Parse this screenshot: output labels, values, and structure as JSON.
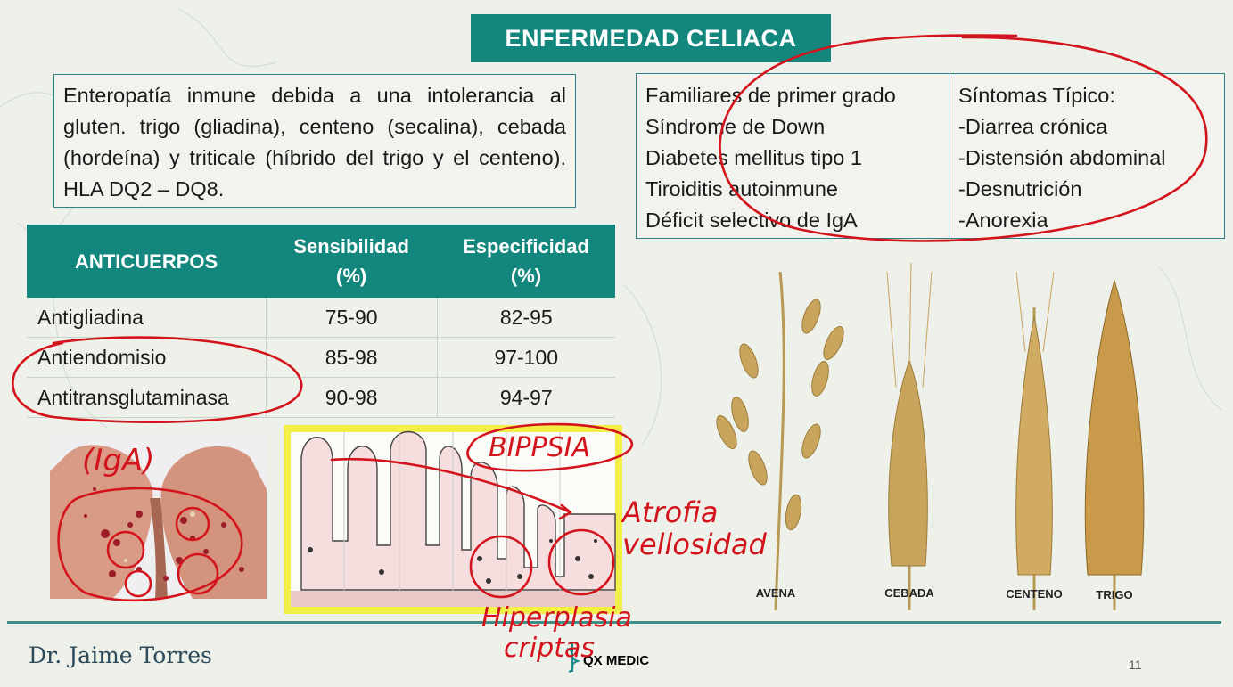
{
  "slide": {
    "title": "ENFERMEDAD CELIACA",
    "definition": "Enteropatía inmune debida a una intolerancia al gluten. trigo (gliadina), centeno (secalina), cebada (hordeína) y triticale (híbrido del trigo y el centeno). HLA DQ2 – DQ8.",
    "risk_groups": [
      "Familiares de primer grado",
      "Síndrome de Down",
      "Diabetes mellitus tipo 1",
      "Tiroiditis autoinmune",
      "Déficit selectivo de IgA"
    ],
    "symptoms": [
      "Síntomas Típico:",
      "-Diarrea crónica",
      "-Distensión abdominal",
      "-Desnutrición",
      "-Anorexia"
    ],
    "antibody_table": {
      "headers": [
        "ANTICUERPOS",
        "Sensibilidad (%)",
        "Especificidad (%)"
      ],
      "rows": [
        [
          "Antigliadina",
          "75-90",
          "82-95"
        ],
        [
          "Antiendomisio",
          "85-98",
          "97-100"
        ],
        [
          "Antitransglutaminasa",
          "90-98",
          "94-97"
        ]
      ]
    },
    "grains": [
      "AVENA",
      "CEBADA",
      "CENTENO",
      "TRIGO"
    ],
    "author": "Dr. Jaime Torres",
    "page_number": "11",
    "logo_text": "QX MEDIC"
  },
  "annotations": {
    "iga": "(IgA)",
    "biopsia": "BIPPSIA",
    "atrofia": "Atrofia",
    "vellosidad": "vellosidad",
    "hiperplasia": "Hiperplasia",
    "criptas": "criptas"
  },
  "colors": {
    "teal": "#13877d",
    "ink_red": "#d3141c",
    "highlight_yellow": "#f2f048",
    "background": "#eef0ea"
  }
}
